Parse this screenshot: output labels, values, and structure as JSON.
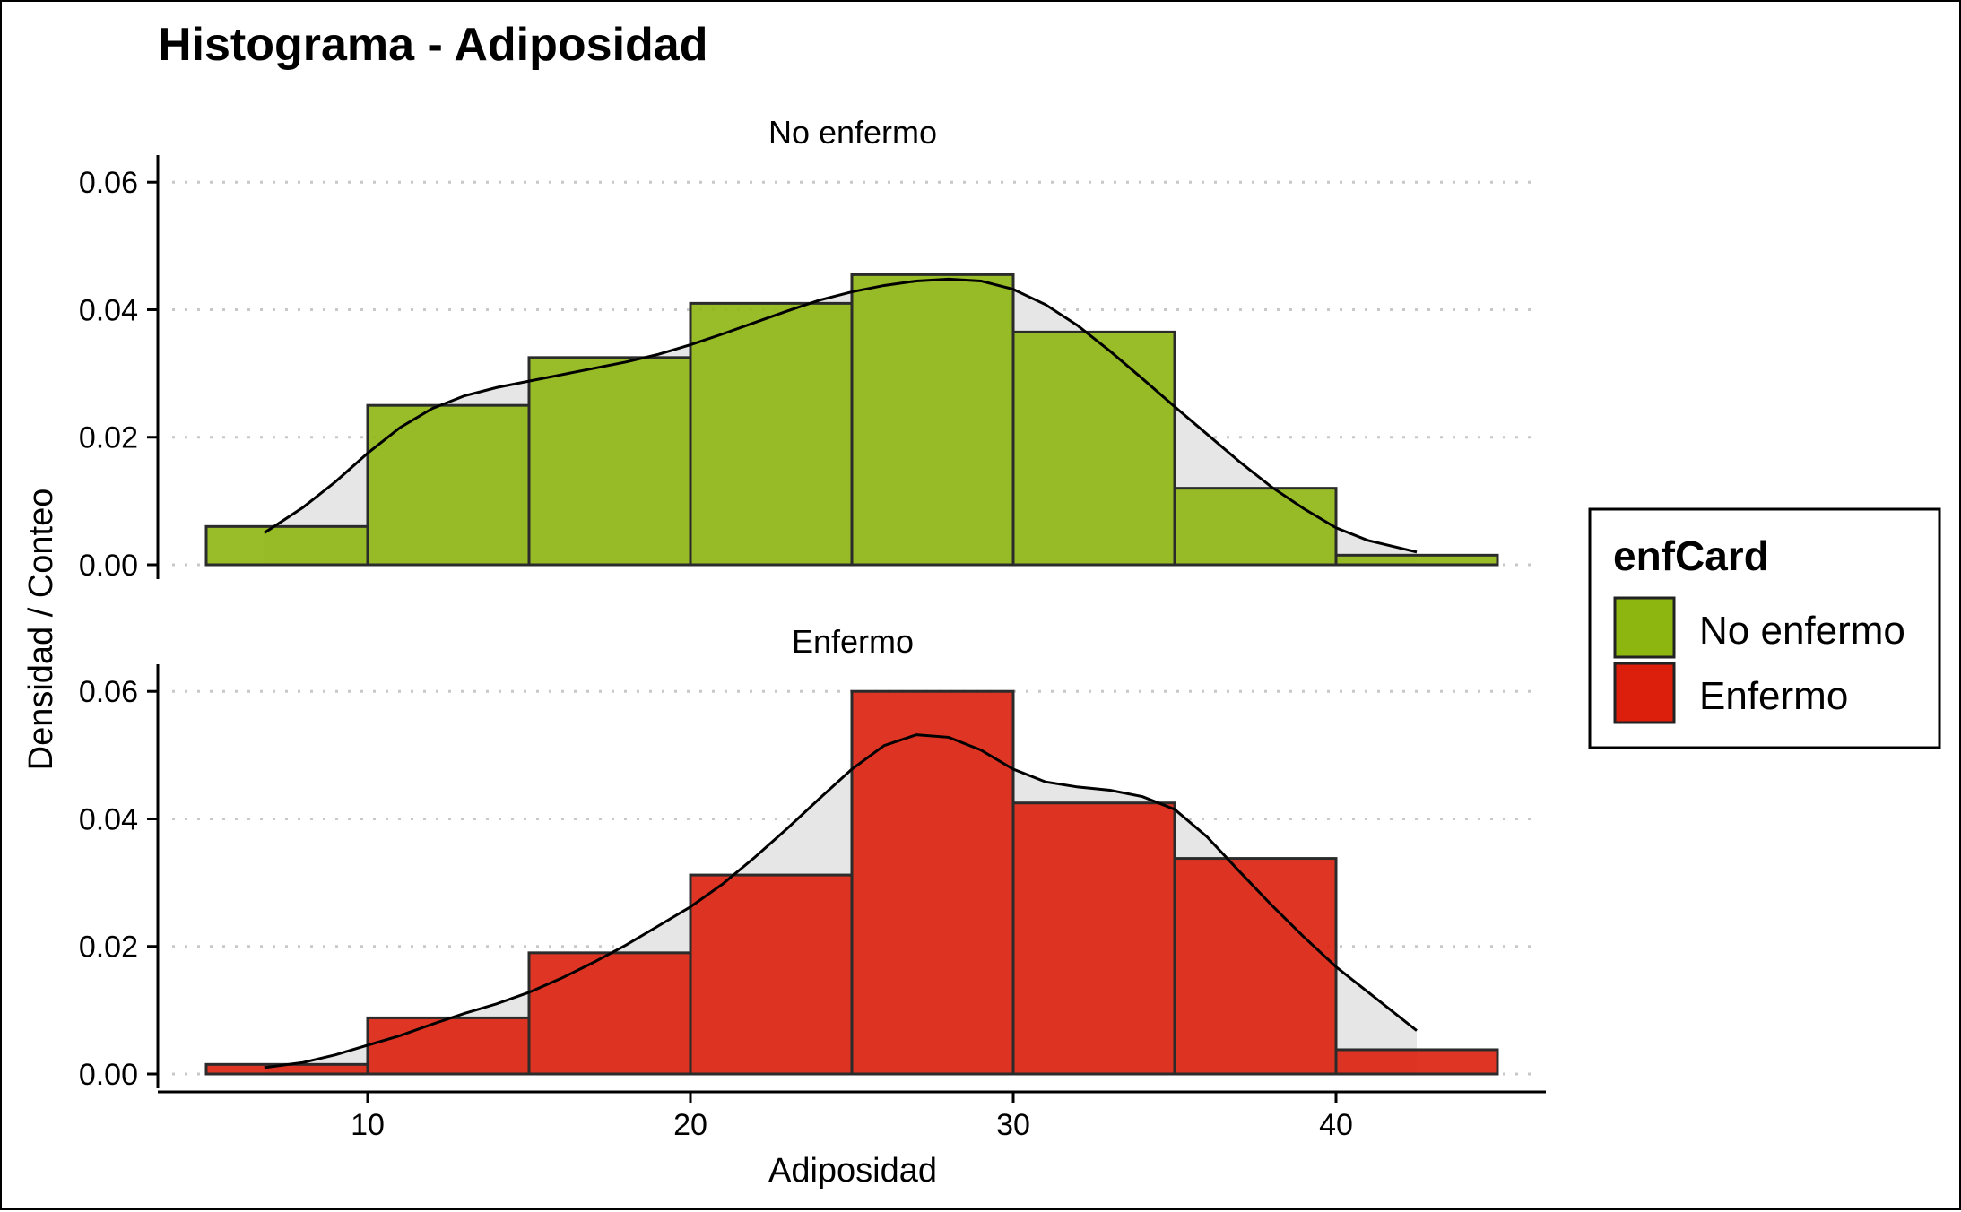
{
  "chart_data": {
    "type": "bar",
    "title": "Histograma - Adiposidad",
    "xlabel": "Adiposidad",
    "ylabel": "Densidad / Conteo",
    "xlim": [
      3.5,
      46.5
    ],
    "ylim": [
      0,
      0.062
    ],
    "x_ticks": [
      10,
      20,
      30,
      40
    ],
    "x_tick_labels": [
      "10",
      "20",
      "30",
      "40"
    ],
    "y_ticks": [
      0,
      0.02,
      0.04,
      0.06
    ],
    "y_tick_labels": [
      "0.00",
      "0.02",
      "0.04",
      "0.06"
    ],
    "grid": "horizontal dotted",
    "legend": {
      "title": "enfCard",
      "position": "right",
      "entries": [
        {
          "label": "No enfermo",
          "color": "#8DB611"
        },
        {
          "label": "Enfermo",
          "color": "#DC1F0C"
        }
      ]
    },
    "bin_edges": [
      5,
      10,
      15,
      20,
      25,
      30,
      35,
      40,
      45
    ],
    "density_color": "#e6e6e6",
    "panels": [
      {
        "strip": "No enfermo",
        "fill": "#8DB611",
        "values": [
          0.006,
          0.025,
          0.0325,
          0.041,
          0.0455,
          0.0365,
          0.012,
          0.0015
        ],
        "density_x": [
          6.8,
          8,
          9,
          10,
          11,
          12,
          13,
          14,
          15,
          16,
          17,
          18,
          19,
          20,
          21,
          22,
          23,
          24,
          25,
          26,
          27,
          28,
          29,
          30,
          31,
          32,
          33,
          34,
          35,
          36,
          37,
          38,
          39,
          40,
          41,
          42.5
        ],
        "density_y": [
          0.005,
          0.009,
          0.013,
          0.0175,
          0.0215,
          0.0245,
          0.0265,
          0.0278,
          0.0288,
          0.0298,
          0.0308,
          0.0318,
          0.033,
          0.0345,
          0.0362,
          0.038,
          0.0398,
          0.0415,
          0.0428,
          0.0438,
          0.0445,
          0.0448,
          0.0445,
          0.0432,
          0.0408,
          0.0375,
          0.0335,
          0.0292,
          0.0248,
          0.0205,
          0.0162,
          0.0122,
          0.0088,
          0.0058,
          0.0038,
          0.002
        ]
      },
      {
        "strip": "Enfermo",
        "fill": "#DC1F0C",
        "values": [
          0.0015,
          0.0088,
          0.019,
          0.0312,
          0.06,
          0.0425,
          0.0338,
          0.0038
        ],
        "density_x": [
          6.8,
          8,
          9,
          10,
          11,
          12,
          13,
          14,
          15,
          16,
          17,
          18,
          19,
          20,
          21,
          22,
          23,
          24,
          25,
          26,
          27,
          28,
          29,
          30,
          31,
          32,
          33,
          34,
          35,
          36,
          37,
          38,
          39,
          40,
          41,
          42.5
        ],
        "density_y": [
          0.001,
          0.0018,
          0.003,
          0.0045,
          0.006,
          0.0078,
          0.0095,
          0.011,
          0.0128,
          0.015,
          0.0175,
          0.0202,
          0.0232,
          0.0262,
          0.0298,
          0.034,
          0.0385,
          0.0432,
          0.0478,
          0.0515,
          0.0532,
          0.0528,
          0.0508,
          0.0478,
          0.0458,
          0.045,
          0.0445,
          0.0435,
          0.0415,
          0.0372,
          0.0318,
          0.0265,
          0.0215,
          0.0168,
          0.0128,
          0.0068
        ]
      }
    ]
  }
}
